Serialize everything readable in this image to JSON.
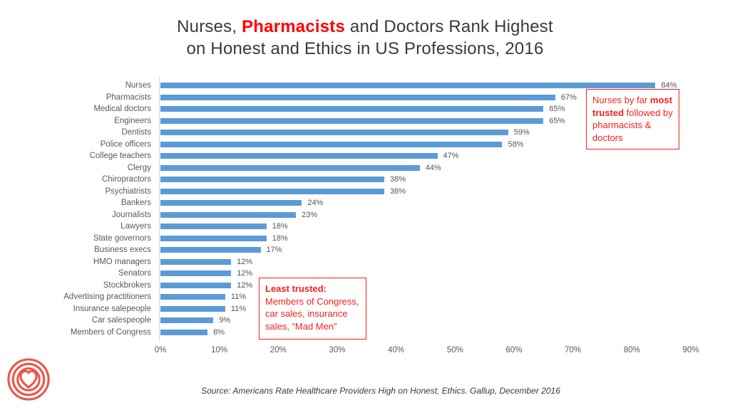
{
  "title": {
    "line1_pre": "Nurses, ",
    "line1_highlight": "Pharmacists",
    "line1_post": " and Doctors Rank Highest",
    "line2": "on Honest and Ethics in US Professions, 2016"
  },
  "chart_data": {
    "type": "bar",
    "orientation": "horizontal",
    "title": "Nurses, Pharmacists and Doctors Rank Highest on Honest and Ethics in US Professions, 2016",
    "categories": [
      "Nurses",
      "Pharmacists",
      "Medical doctors",
      "Engineers",
      "Dentists",
      "Police officers",
      "College teachers",
      "Clergy",
      "Chiropractors",
      "Psychiatrists",
      "Bankers",
      "Journalists",
      "Lawyers",
      "State governors",
      "Business execs",
      "HMO managers",
      "Senators",
      "Stockbrokers",
      "Advertising practitioners",
      "Insurance salepeople",
      "Car salespeople",
      "Members of Congress"
    ],
    "values": [
      84,
      67,
      65,
      65,
      59,
      58,
      47,
      44,
      38,
      38,
      24,
      23,
      18,
      18,
      17,
      12,
      12,
      12,
      11,
      11,
      9,
      8
    ],
    "value_suffix": "%",
    "xlim": [
      0,
      90
    ],
    "x_ticks": [
      "0%",
      "10%",
      "20%",
      "30%",
      "40%",
      "50%",
      "60%",
      "70%",
      "80%",
      "90%"
    ],
    "grid": false,
    "legend": "none",
    "bar_color": "#5b9bd5"
  },
  "annotations": {
    "top_right": {
      "pre": "Nurses by far ",
      "bold": "most trusted",
      "post": " followed by pharmacists & doctors"
    },
    "bottom": {
      "bold": "Least trusted:",
      "text": "Members of Congress, car sales, insurance sales, “Mad Men”"
    }
  },
  "source": "Source: Americans Rate Healthcare Providers High on Honest, Ethics. Gallup, December 2016",
  "logo": {
    "name": "heart-target-logo",
    "color": "#e8584a"
  },
  "colors": {
    "bar": "#5b9bd5",
    "title_text": "#3a3a3a",
    "title_highlight": "#ff0000",
    "annotation_red": "#f8201b",
    "axis_text": "#595959",
    "axis_line": "#d6d6d6"
  }
}
